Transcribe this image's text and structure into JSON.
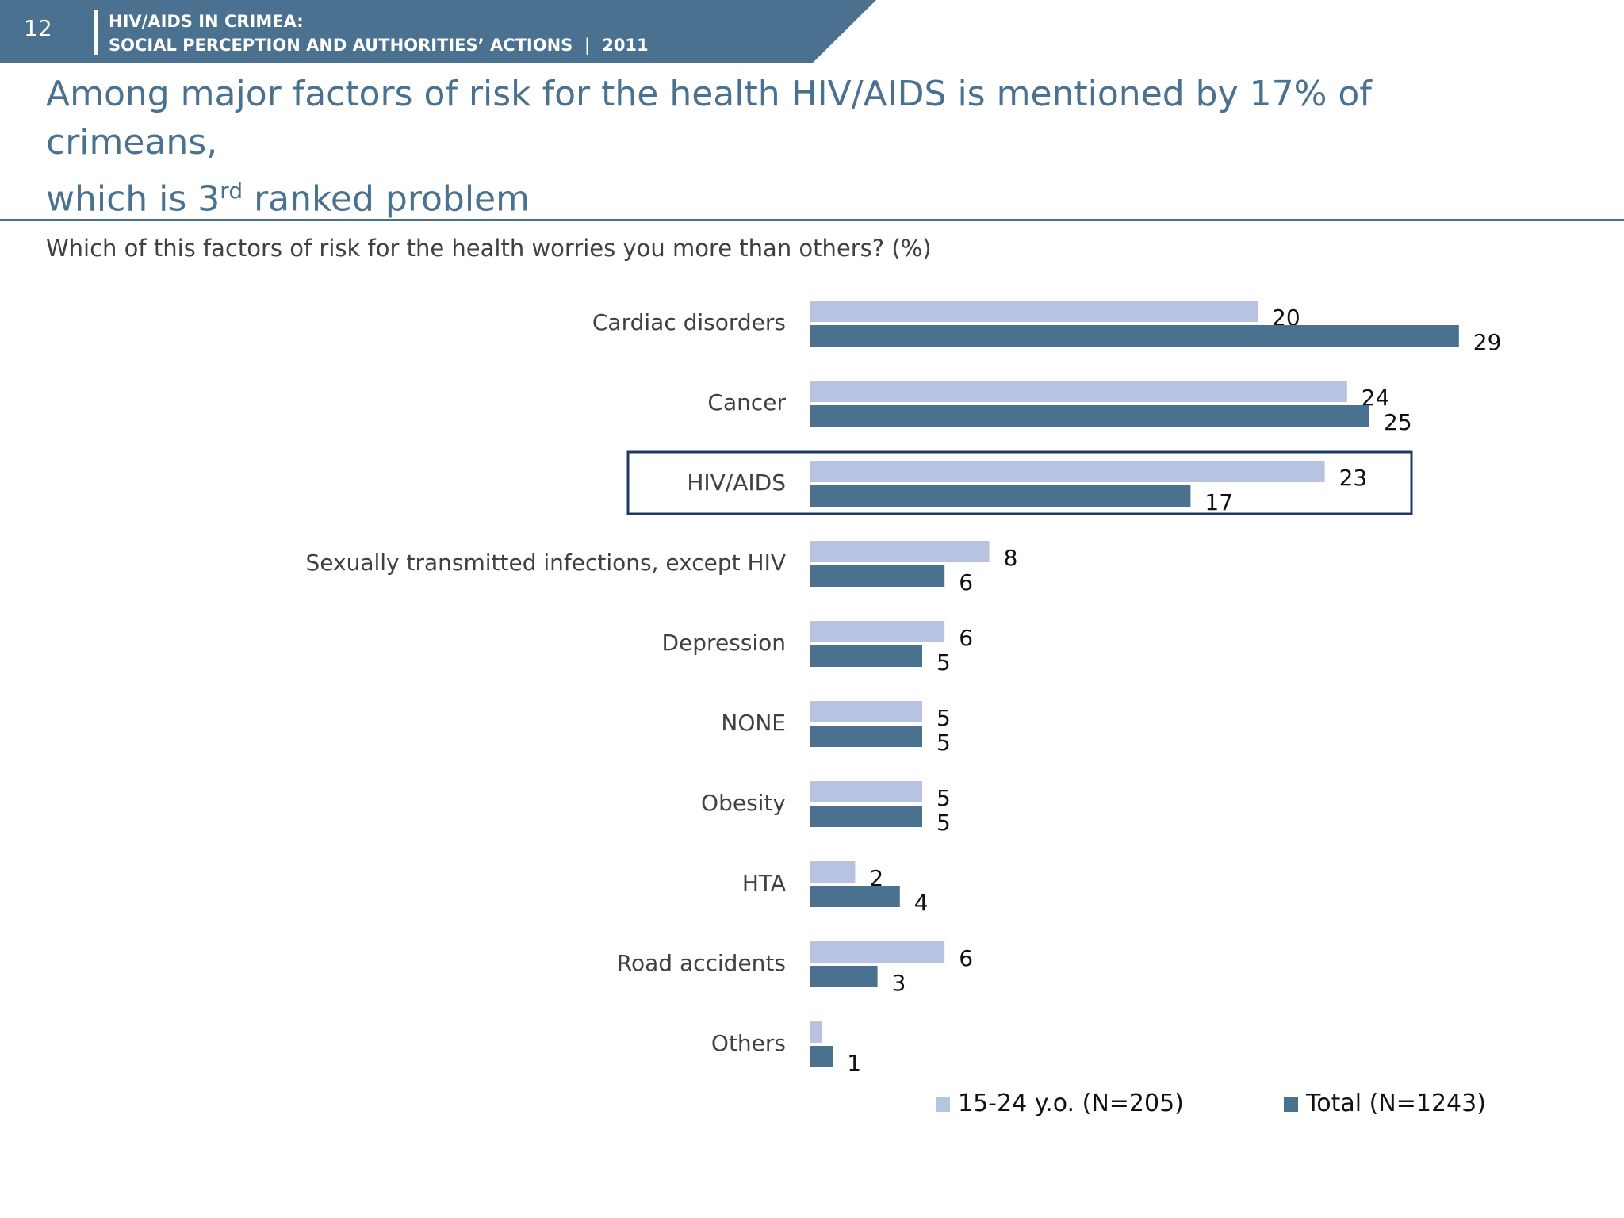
{
  "header": {
    "page_number": "12",
    "line1": "HIV/AIDS IN CRIMEA:",
    "line2": "SOCIAL PERCEPTION AND AUTHORITIES’ ACTIONS  |  2011",
    "band_color": "#4a7290"
  },
  "title": {
    "line1": "Among major factors of risk for the health HIV/AIDS is mentioned by 17% of crimeans,",
    "line2_pre": "which is 3",
    "line2_sup": "rd",
    "line2_post": " ranked problem"
  },
  "question": "Which of this factors of risk for the health worries you more than others? (%)",
  "chart_data": {
    "type": "bar",
    "orientation": "horizontal",
    "categories": [
      "Cardiac disorders",
      "Cancer",
      "HIV/AIDS",
      "Sexually transmitted infections, except HIV",
      "Depression",
      "NONE",
      "Obesity",
      "HTA",
      "Road accidents",
      "Others"
    ],
    "series": [
      {
        "name": "15-24 y.o. (N=205)",
        "color": "#b7c3e0",
        "values": [
          20,
          24,
          23,
          8,
          6,
          5,
          5,
          2,
          6,
          0.5
        ],
        "labels": [
          "20",
          "24",
          "23",
          "8",
          "6",
          "5",
          "5",
          "2",
          "6",
          ""
        ]
      },
      {
        "name": "Total (N=1243)",
        "color": "#4a7290",
        "values": [
          29,
          25,
          17,
          6,
          5,
          5,
          5,
          4,
          3,
          1
        ],
        "labels": [
          "29",
          "25",
          "17",
          "6",
          "5",
          "5",
          "5",
          "4",
          "3",
          "1"
        ]
      }
    ],
    "highlighted_category": "HIV/AIDS",
    "highlight_color": "#1f3a5f",
    "legend_position": "bottom",
    "grid": false,
    "xlim": [
      0,
      30
    ]
  }
}
